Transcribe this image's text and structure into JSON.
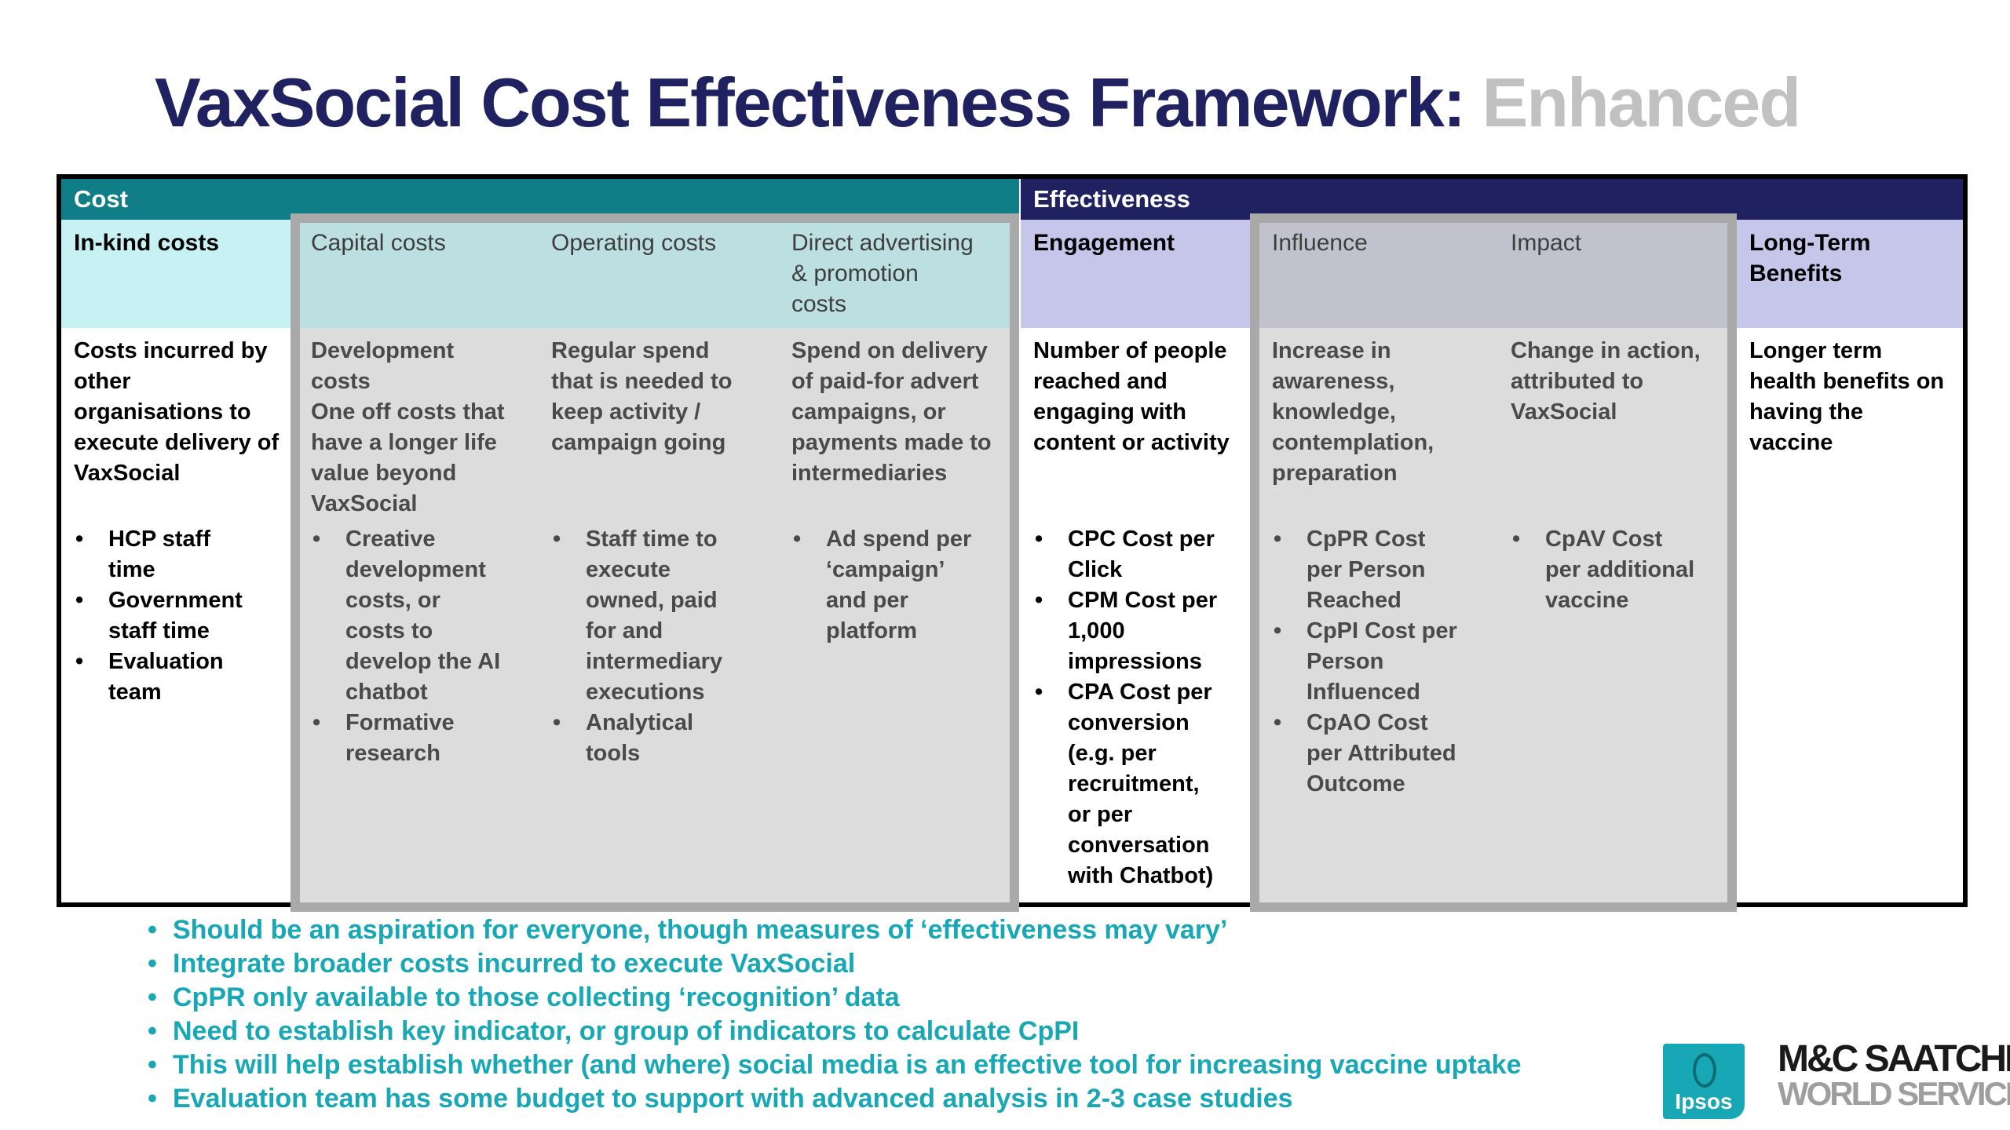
{
  "title": {
    "main": "VaxSocial Cost Effectiveness Framework:",
    "accent": "Enhanced"
  },
  "bands": {
    "cost": "Cost",
    "effectiveness": "Effectiveness"
  },
  "columns": [
    {
      "header": "In-kind costs",
      "definition": [
        "Costs incurred by",
        "other",
        "organisations to",
        "execute delivery of",
        "VaxSocial"
      ],
      "bullets": [
        [
          "HCP staff",
          "time"
        ],
        [
          "Government",
          "staff time"
        ],
        [
          "Evaluation",
          "team"
        ]
      ]
    },
    {
      "header": [
        "Capital costs"
      ],
      "definition": [
        "Development",
        "costs",
        "One off costs that",
        "have a longer life",
        "value beyond",
        "VaxSocial"
      ],
      "bullets": [
        [
          "Creative",
          "development",
          "costs, or",
          "costs to",
          "develop the AI",
          "chatbot"
        ],
        [
          "Formative",
          "research"
        ]
      ]
    },
    {
      "header": [
        "Operating costs"
      ],
      "definition": [
        "Regular spend",
        "that is needed to",
        "keep activity /",
        "campaign going"
      ],
      "bullets": [
        [
          "Staff time to",
          "execute",
          "owned, paid",
          "for and",
          "intermediary",
          "executions"
        ],
        [
          "Analytical",
          "tools"
        ]
      ]
    },
    {
      "header": [
        "Direct advertising",
        "& promotion",
        "costs"
      ],
      "definition": [
        "Spend on delivery",
        "of paid-for advert",
        "campaigns, or",
        "payments made to",
        "intermediaries"
      ],
      "bullets": [
        [
          "Ad spend per",
          "‘campaign’",
          "and per",
          "platform"
        ]
      ]
    },
    {
      "header": [
        "Engagement"
      ],
      "definition": [
        "Number of people",
        "reached and",
        "engaging with",
        "content or activity"
      ],
      "bullets": [
        [
          "CPC Cost per",
          "Click"
        ],
        [
          "CPM Cost per",
          "1,000",
          "impressions"
        ],
        [
          "CPA Cost per",
          "conversion",
          "(e.g. per",
          "recruitment,",
          "or per",
          "conversation",
          "with Chatbot)"
        ]
      ]
    },
    {
      "header": [
        "Influence"
      ],
      "definition": [
        "Increase in",
        "awareness,",
        "knowledge,",
        "contemplation,",
        "preparation"
      ],
      "bullets": [
        [
          "CpPR Cost",
          "per Person",
          "Reached"
        ],
        [
          "CpPI Cost per",
          "Person",
          "Influenced"
        ],
        [
          "CpAO Cost",
          "per Attributed",
          "Outcome"
        ]
      ]
    },
    {
      "header": [
        "Impact"
      ],
      "definition": [
        "Change in action,",
        "attributed to",
        "VaxSocial"
      ],
      "bullets": [
        [
          "CpAV Cost",
          "per additional",
          "vaccine"
        ]
      ]
    },
    {
      "header": [
        "Long-Term",
        "Benefits"
      ],
      "definition": [
        "Longer term",
        "health benefits on",
        "having the vaccine"
      ],
      "bullets": []
    }
  ],
  "notes": [
    "Should be an aspiration for everyone, though measures of ‘effectiveness may vary’",
    "Integrate broader costs incurred to execute VaxSocial",
    "CpPR only available to those collecting ‘recognition’ data",
    "Need to establish key indicator, or group of indicators to calculate CpPI",
    "This will help establish whether (and where) social media is an effective tool for increasing vaccine uptake",
    "Evaluation team has some budget to support with advanced analysis in 2-3 case studies"
  ],
  "logos": {
    "ipsos": "Ipsos",
    "saatchi_line1": "M&C SAATCHI",
    "saatchi_line2": "WORLD SERVICES"
  },
  "colors": {
    "title": "#1f2160",
    "title_accent": "#c1c1c1",
    "cost_band": "#107e87",
    "effectiveness_band": "#1f2160",
    "notes_text": "#17a7b5",
    "ipsos": "#17a7b5"
  }
}
